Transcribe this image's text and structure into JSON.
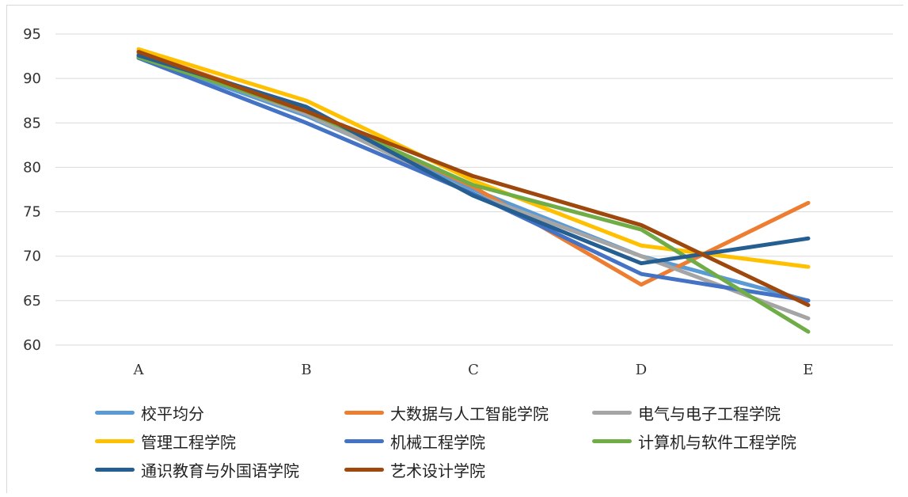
{
  "chart_data": {
    "type": "line",
    "categories": [
      "A",
      "B",
      "C",
      "D",
      "E"
    ],
    "ylim": [
      60,
      95
    ],
    "yticks": [
      60,
      65,
      70,
      75,
      80,
      85,
      90,
      95
    ],
    "grid": true,
    "legend_position": "bottom",
    "series": [
      {
        "name": "校平均分",
        "color": "#5b9bd5",
        "values": [
          92.5,
          85.8,
          77.5,
          70.0,
          65.0
        ]
      },
      {
        "name": "大数据与人工智能学院",
        "color": "#ed7d31",
        "values": [
          93.0,
          86.5,
          77.8,
          66.8,
          76.0
        ]
      },
      {
        "name": "电气与电子工程学院",
        "color": "#a5a5a5",
        "values": [
          92.8,
          86.0,
          77.0,
          70.0,
          63.0
        ]
      },
      {
        "name": "管理工程学院",
        "color": "#ffc000",
        "values": [
          93.3,
          87.5,
          78.5,
          71.2,
          68.8
        ]
      },
      {
        "name": "机械工程学院",
        "color": "#4472c4",
        "values": [
          92.3,
          85.0,
          77.0,
          68.0,
          65.0
        ]
      },
      {
        "name": "计算机与软件工程学院",
        "color": "#70ad47",
        "values": [
          92.4,
          86.3,
          78.0,
          73.0,
          61.5
        ]
      },
      {
        "name": "通识教育与外国语学院",
        "color": "#255e91",
        "values": [
          92.6,
          86.8,
          76.8,
          69.2,
          72.0
        ]
      },
      {
        "name": "艺术设计学院",
        "color": "#9e480e",
        "values": [
          93.0,
          86.3,
          79.0,
          73.5,
          64.5
        ]
      }
    ]
  }
}
